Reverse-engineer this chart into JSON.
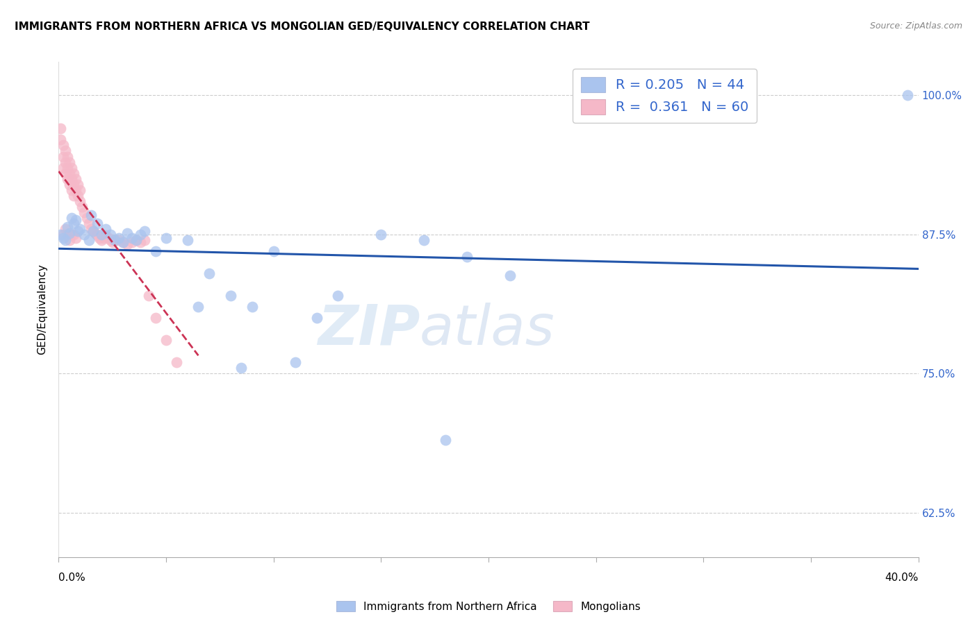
{
  "title": "IMMIGRANTS FROM NORTHERN AFRICA VS MONGOLIAN GED/EQUIVALENCY CORRELATION CHART",
  "source": "Source: ZipAtlas.com",
  "ylabel": "GED/Equivalency",
  "ytick_labels": [
    "100.0%",
    "87.5%",
    "75.0%",
    "62.5%"
  ],
  "ytick_values": [
    1.0,
    0.875,
    0.75,
    0.625
  ],
  "xlim": [
    0.0,
    0.4
  ],
  "ylim": [
    0.585,
    1.03
  ],
  "blue_R": 0.205,
  "blue_N": 44,
  "pink_R": 0.361,
  "pink_N": 60,
  "blue_color": "#aac4ee",
  "pink_color": "#f5b8c8",
  "blue_line_color": "#2255aa",
  "pink_line_color": "#cc3355",
  "watermark_zip": "ZIP",
  "watermark_atlas": "atlas",
  "legend_label_blue": "Immigrants from Northern Africa",
  "legend_label_pink": "Mongolians",
  "blue_scatter_x": [
    0.001,
    0.002,
    0.003,
    0.004,
    0.005,
    0.006,
    0.007,
    0.008,
    0.009,
    0.01,
    0.012,
    0.014,
    0.015,
    0.016,
    0.018,
    0.02,
    0.022,
    0.024,
    0.026,
    0.028,
    0.03,
    0.032,
    0.034,
    0.036,
    0.038,
    0.04,
    0.045,
    0.05,
    0.06,
    0.07,
    0.08,
    0.09,
    0.1,
    0.11,
    0.12,
    0.13,
    0.15,
    0.17,
    0.19,
    0.21,
    0.18,
    0.085,
    0.065,
    0.395
  ],
  "blue_scatter_y": [
    0.875,
    0.872,
    0.87,
    0.882,
    0.876,
    0.89,
    0.885,
    0.888,
    0.878,
    0.88,
    0.875,
    0.87,
    0.892,
    0.878,
    0.885,
    0.875,
    0.88,
    0.875,
    0.87,
    0.872,
    0.868,
    0.876,
    0.872,
    0.87,
    0.875,
    0.878,
    0.86,
    0.872,
    0.87,
    0.84,
    0.82,
    0.81,
    0.86,
    0.76,
    0.8,
    0.82,
    0.875,
    0.87,
    0.855,
    0.838,
    0.69,
    0.755,
    0.81,
    1.0
  ],
  "pink_scatter_x": [
    0.001,
    0.001,
    0.002,
    0.002,
    0.002,
    0.003,
    0.003,
    0.003,
    0.004,
    0.004,
    0.004,
    0.005,
    0.005,
    0.005,
    0.006,
    0.006,
    0.006,
    0.007,
    0.007,
    0.007,
    0.008,
    0.008,
    0.009,
    0.009,
    0.01,
    0.01,
    0.011,
    0.012,
    0.013,
    0.014,
    0.015,
    0.016,
    0.017,
    0.018,
    0.019,
    0.02,
    0.021,
    0.022,
    0.023,
    0.024,
    0.025,
    0.026,
    0.028,
    0.03,
    0.032,
    0.034,
    0.036,
    0.038,
    0.04,
    0.042,
    0.045,
    0.05,
    0.055,
    0.002,
    0.003,
    0.004,
    0.005,
    0.006,
    0.007,
    0.008
  ],
  "pink_scatter_y": [
    0.96,
    0.97,
    0.955,
    0.945,
    0.935,
    0.95,
    0.94,
    0.93,
    0.945,
    0.935,
    0.925,
    0.94,
    0.93,
    0.92,
    0.935,
    0.925,
    0.915,
    0.93,
    0.92,
    0.91,
    0.925,
    0.915,
    0.92,
    0.91,
    0.915,
    0.905,
    0.9,
    0.895,
    0.89,
    0.885,
    0.88,
    0.878,
    0.876,
    0.874,
    0.872,
    0.87,
    0.872,
    0.874,
    0.872,
    0.87,
    0.868,
    0.87,
    0.87,
    0.868,
    0.866,
    0.868,
    0.87,
    0.868,
    0.87,
    0.82,
    0.8,
    0.78,
    0.76,
    0.875,
    0.88,
    0.875,
    0.87,
    0.875,
    0.875,
    0.872
  ]
}
